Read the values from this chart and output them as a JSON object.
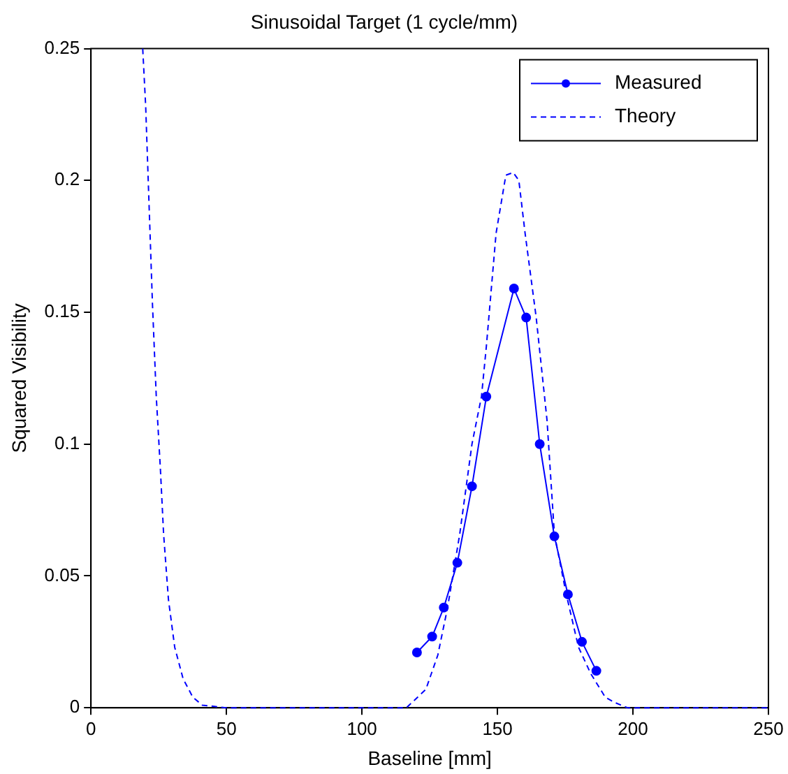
{
  "chart_data": {
    "type": "line",
    "title": "Sinusoidal Target (1 cycle/mm)",
    "xlabel": "Baseline [mm]",
    "ylabel": "Squared Visibility",
    "xlim": [
      0,
      250
    ],
    "xticks": [
      0,
      50,
      100,
      150,
      200,
      250
    ],
    "ylim": [
      0,
      0.25
    ],
    "yticks": [
      0,
      0.05,
      0.1,
      0.15,
      0.2,
      0.25
    ],
    "grid": false,
    "legend": "top right",
    "series": [
      {
        "name": "Measured",
        "color": "#0000ff",
        "marker": "circle",
        "line_style": "solid",
        "x": [
          120.3,
          125.9,
          130.2,
          135.2,
          140.6,
          145.9,
          156.1,
          160.6,
          165.6,
          171,
          176,
          181.2,
          186.5
        ],
        "values": [
          0.021,
          0.027,
          0.038,
          0.055,
          0.084,
          0.118,
          0.159,
          0.148,
          0.1,
          0.065,
          0.043,
          0.025,
          0.014
        ]
      },
      {
        "name": "Theory",
        "color": "#0000ff",
        "marker": "none",
        "line_style": "dashed",
        "x": [
          19.1,
          20.2,
          21.5,
          22.7,
          24.1,
          25.6,
          26.8,
          28.6,
          30.9,
          34,
          37.6,
          41.1,
          50,
          100,
          116.4,
          123.6,
          128,
          131.6,
          136.1,
          140.6,
          144.1,
          145.9,
          149.5,
          153.1,
          155.8,
          157.9,
          160.2,
          164.3,
          168.3,
          171,
          175.4,
          179.9,
          184.4,
          189.8,
          193.3,
          198,
          250
        ],
        "values": [
          0.25,
          0.228,
          0.189,
          0.153,
          0.118,
          0.091,
          0.066,
          0.041,
          0.023,
          0.011,
          0.004,
          0.001,
          0,
          0,
          0,
          0.007,
          0.02,
          0.038,
          0.066,
          0.1,
          0.118,
          0.137,
          0.18,
          0.202,
          0.203,
          0.2,
          0.18,
          0.148,
          0.109,
          0.066,
          0.043,
          0.023,
          0.013,
          0.004,
          0.002,
          0,
          0
        ]
      }
    ]
  }
}
